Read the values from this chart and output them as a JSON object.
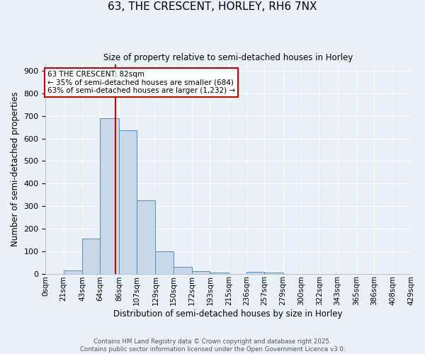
{
  "title": "63, THE CRESCENT, HORLEY, RH6 7NX",
  "subtitle": "Size of property relative to semi-detached houses in Horley",
  "xlabel": "Distribution of semi-detached houses by size in Horley",
  "ylabel": "Number of semi-detached properties",
  "bin_edges": [
    0,
    21,
    43,
    64,
    86,
    107,
    129,
    150,
    172,
    193,
    215,
    236,
    257,
    279,
    300,
    322,
    343,
    365,
    386,
    408,
    429
  ],
  "bin_counts": [
    0,
    15,
    155,
    690,
    635,
    325,
    98,
    30,
    12,
    5,
    0,
    7,
    5,
    0,
    0,
    0,
    0,
    0,
    0,
    0
  ],
  "bar_color": "#c8d8e8",
  "bar_edge_color": "#5a8ab0",
  "property_size": 82,
  "vline_color": "#cc0000",
  "annotation_text": "63 THE CRESCENT: 82sqm\n← 35% of semi-detached houses are smaller (684)\n63% of semi-detached houses are larger (1,232) →",
  "annotation_box_color": "#ffffff",
  "annotation_box_edge_color": "#cc0000",
  "ylim": [
    0,
    930
  ],
  "yticks": [
    0,
    100,
    200,
    300,
    400,
    500,
    600,
    700,
    800,
    900
  ],
  "tick_labels": [
    "0sqm",
    "21sqm",
    "43sqm",
    "64sqm",
    "86sqm",
    "107sqm",
    "129sqm",
    "150sqm",
    "172sqm",
    "193sqm",
    "215sqm",
    "236sqm",
    "257sqm",
    "279sqm",
    "300sqm",
    "322sqm",
    "343sqm",
    "365sqm",
    "386sqm",
    "408sqm",
    "429sqm"
  ],
  "footer_line1": "Contains HM Land Registry data © Crown copyright and database right 2025.",
  "footer_line2": "Contains public sector information licensed under the Open Government Licence v3.0.",
  "bg_color": "#e8f0f8",
  "grid_color": "#ffffff",
  "figsize": [
    6.0,
    5.0
  ],
  "dpi": 100
}
